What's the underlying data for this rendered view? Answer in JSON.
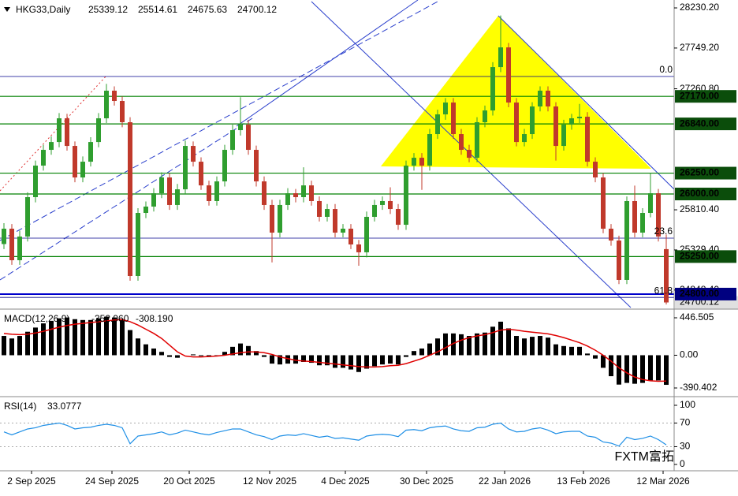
{
  "chart_data": {
    "type": "candlestick",
    "symbol": "HKG33,Daily",
    "up_color": "#2f9e2f",
    "down_color": "#c0392b",
    "ylim": [
      24639,
      28306
    ],
    "yticks": [
      {
        "value": 28230.2,
        "label": "28230.20"
      },
      {
        "value": 27749.2,
        "label": "27749.20"
      },
      {
        "value": 27260.8,
        "label": "27260.80"
      },
      {
        "value": 25810.4,
        "label": "25810.40"
      },
      {
        "value": 25329.4,
        "label": "25329.40"
      },
      {
        "value": 24848.4,
        "label": "24848.40"
      }
    ],
    "levels": [
      {
        "value": 27170,
        "label": "27170.00",
        "color": "#008000"
      },
      {
        "value": 26840,
        "label": "26840.00",
        "color": "#008000"
      },
      {
        "value": 26250,
        "label": "26250.00",
        "color": "#008000"
      },
      {
        "value": 26000,
        "label": "26000.00",
        "color": "#008000"
      },
      {
        "value": 25250,
        "label": "25250.00",
        "color": "#008000"
      },
      {
        "value": 24800,
        "label": "24800.00",
        "color": "#0000cc"
      }
    ],
    "fibo": {
      "labels": [
        "0.0",
        "23.6",
        "61.8"
      ],
      "prices": [
        27408,
        25471,
        24760
      ],
      "color": "#00008b"
    },
    "x_labels": [
      "2 Sep 2025",
      "24 Sep 2025",
      "20 Oct 2025",
      "12 Nov 2025",
      "4 Dec 2025",
      "30 Dec 2025",
      "22 Jan 2026",
      "13 Feb 2026",
      "12 Mar 2026"
    ],
    "watermark": "FXTM富拓",
    "candles": [
      [
        25400,
        25650,
        25340,
        25584
      ],
      [
        25584,
        25640,
        25150,
        25206
      ],
      [
        25206,
        25560,
        25150,
        25490
      ],
      [
        25490,
        26020,
        25430,
        25962
      ],
      [
        25962,
        26400,
        25900,
        26340
      ],
      [
        26340,
        26590,
        26280,
        26529
      ],
      [
        26529,
        26690,
        26470,
        26623
      ],
      [
        26623,
        26970,
        26560,
        26907
      ],
      [
        26907,
        26960,
        26520,
        26576
      ],
      [
        26576,
        26630,
        26140,
        26198
      ],
      [
        26198,
        26450,
        26140,
        26387
      ],
      [
        26387,
        26680,
        26330,
        26623
      ],
      [
        26623,
        26970,
        26560,
        26907
      ],
      [
        26907,
        27320,
        26850,
        27238
      ],
      [
        27238,
        27290,
        27060,
        27115
      ],
      [
        27115,
        27170,
        26800,
        26860
      ],
      [
        26860,
        26920,
        24960,
        25017
      ],
      [
        25017,
        25830,
        24960,
        25773
      ],
      [
        25773,
        25910,
        25710,
        25849
      ],
      [
        25849,
        26070,
        25790,
        26009
      ],
      [
        26009,
        26260,
        25950,
        26198
      ],
      [
        26198,
        26250,
        25810,
        25868
      ],
      [
        25868,
        26120,
        25810,
        26056
      ],
      [
        26056,
        26640,
        26000,
        26576
      ],
      [
        26576,
        26630,
        26330,
        26387
      ],
      [
        26387,
        26440,
        26050,
        26103
      ],
      [
        26103,
        26160,
        25860,
        25915
      ],
      [
        25915,
        26210,
        25860,
        26151
      ],
      [
        26151,
        26590,
        26090,
        26529
      ],
      [
        26529,
        26830,
        26470,
        26765
      ],
      [
        26765,
        27160,
        26700,
        26831
      ],
      [
        26831,
        26890,
        26470,
        26529
      ],
      [
        26529,
        26580,
        26090,
        26151
      ],
      [
        26151,
        26210,
        25810,
        25868
      ],
      [
        25868,
        25930,
        25180,
        25537
      ],
      [
        25537,
        25930,
        25480,
        25868
      ],
      [
        25868,
        26070,
        25810,
        26009
      ],
      [
        26009,
        26060,
        25900,
        25962
      ],
      [
        25962,
        26320,
        25900,
        26103
      ],
      [
        26103,
        26160,
        25860,
        25915
      ],
      [
        25915,
        25970,
        25670,
        25726
      ],
      [
        25726,
        25880,
        25670,
        25820
      ],
      [
        25820,
        25880,
        25480,
        25537
      ],
      [
        25537,
        25640,
        25480,
        25584
      ],
      [
        25584,
        25640,
        25340,
        25395
      ],
      [
        25395,
        25450,
        25140,
        25301
      ],
      [
        25301,
        25790,
        25240,
        25726
      ],
      [
        25726,
        25930,
        25670,
        25868
      ],
      [
        25868,
        25970,
        25810,
        25915
      ],
      [
        25915,
        26080,
        25760,
        25820
      ],
      [
        25820,
        25880,
        25570,
        25631
      ],
      [
        25631,
        26400,
        25570,
        26340
      ],
      [
        26340,
        26490,
        26280,
        26434
      ],
      [
        26434,
        26490,
        26050,
        26340
      ],
      [
        26340,
        26780,
        26280,
        26718
      ],
      [
        26718,
        27010,
        26660,
        26954
      ],
      [
        26954,
        27150,
        26890,
        27096
      ],
      [
        27096,
        27150,
        26660,
        26718
      ],
      [
        26718,
        26780,
        26470,
        26529
      ],
      [
        26529,
        26590,
        26380,
        26434
      ],
      [
        26434,
        26920,
        26380,
        26860
      ],
      [
        26860,
        27060,
        26800,
        27001
      ],
      [
        27001,
        27580,
        26940,
        27521
      ],
      [
        27521,
        28140,
        27460,
        27757
      ],
      [
        27757,
        27810,
        27040,
        27096
      ],
      [
        27096,
        27150,
        26570,
        26623
      ],
      [
        26623,
        26780,
        26570,
        26718
      ],
      [
        26718,
        27100,
        26660,
        27049
      ],
      [
        27049,
        27290,
        26990,
        27238
      ],
      [
        27238,
        27290,
        26990,
        27049
      ],
      [
        27049,
        27100,
        26400,
        26576
      ],
      [
        26576,
        26890,
        26520,
        26831
      ],
      [
        26831,
        26960,
        26770,
        26907
      ],
      [
        26907,
        27080,
        26850,
        26926
      ],
      [
        26926,
        26980,
        26330,
        26387
      ],
      [
        26387,
        26440,
        26140,
        26198
      ],
      [
        26198,
        26250,
        25530,
        25584
      ],
      [
        25584,
        25640,
        25380,
        25442
      ],
      [
        25442,
        25500,
        24920,
        24970
      ],
      [
        24970,
        25970,
        24920,
        25915
      ],
      [
        25915,
        26100,
        25480,
        25537
      ],
      [
        25537,
        25830,
        25480,
        25773
      ],
      [
        25773,
        26250,
        25720,
        26009
      ],
      [
        26009,
        26060,
        25430,
        25490
      ],
      [
        25339.12,
        25514.61,
        24675.63,
        24700.12
      ]
    ],
    "macd": {
      "title": "MACD(12,26,9)",
      "legend_values": [
        "-352.960",
        "-308.190"
      ],
      "ylim": [
        -484.4,
        531.1
      ],
      "yticks": [
        446.505,
        {
          "value": 0,
          "label": "0.00"
        },
        -390.402
      ],
      "hist_color": "#000000",
      "signal_color": "#e00000",
      "values": [
        230,
        200,
        230,
        280,
        330,
        380,
        410,
        440,
        450,
        430,
        420,
        420,
        440,
        460,
        450,
        430,
        300,
        200,
        130,
        80,
        40,
        -20,
        -30,
        0,
        10,
        -10,
        -20,
        -10,
        40,
        100,
        140,
        110,
        50,
        -20,
        -100,
        -110,
        -100,
        -100,
        -80,
        -90,
        -120,
        -120,
        -150,
        -150,
        -170,
        -200,
        -160,
        -130,
        -110,
        -100,
        -110,
        -20,
        50,
        80,
        140,
        200,
        260,
        260,
        250,
        230,
        260,
        270,
        340,
        400,
        320,
        230,
        200,
        220,
        230,
        210,
        130,
        110,
        100,
        100,
        20,
        -40,
        -150,
        -250,
        -350,
        -330,
        -340,
        -330,
        -300,
        -300,
        -352.96
      ],
      "signal": [
        260,
        250,
        245,
        250,
        265,
        285,
        310,
        335,
        355,
        370,
        380,
        390,
        400,
        410,
        420,
        425,
        400,
        360,
        310,
        260,
        200,
        120,
        40,
        -10,
        -20,
        -20,
        -15,
        -10,
        0,
        15,
        30,
        40,
        40,
        30,
        10,
        -20,
        -40,
        -60,
        -70,
        -75,
        -85,
        -95,
        -105,
        -115,
        -125,
        -135,
        -140,
        -140,
        -135,
        -125,
        -120,
        -100,
        -70,
        -40,
        0,
        40,
        90,
        140,
        180,
        210,
        230,
        245,
        270,
        300,
        310,
        300,
        285,
        275,
        265,
        255,
        235,
        210,
        180,
        150,
        110,
        60,
        0,
        -70,
        -150,
        -210,
        -260,
        -290,
        -305,
        -310,
        -308.19
      ]
    },
    "rsi": {
      "title": "RSI(14)",
      "ylim": [
        -10.7,
        113.3
      ],
      "yticks": [
        100,
        70,
        30,
        0
      ],
      "levels": [
        70,
        30
      ],
      "color": "#1e8fe6",
      "values": [
        55,
        50,
        55,
        60,
        62,
        66,
        68,
        70,
        66,
        60,
        62,
        63,
        66,
        68,
        66,
        62,
        35,
        48,
        50,
        52,
        55,
        50,
        53,
        58,
        55,
        52,
        50,
        54,
        57,
        60,
        60,
        55,
        50,
        47,
        42,
        48,
        50,
        49,
        52,
        49,
        46,
        48,
        44,
        45,
        43,
        41,
        48,
        50,
        51,
        50,
        47,
        58,
        59,
        57,
        62,
        64,
        65,
        60,
        57,
        56,
        62,
        63,
        68,
        70,
        60,
        55,
        56,
        60,
        62,
        58,
        52,
        55,
        56,
        56,
        48,
        46,
        38,
        36,
        31,
        46,
        42,
        44,
        48,
        42,
        33.0777
      ]
    }
  }
}
